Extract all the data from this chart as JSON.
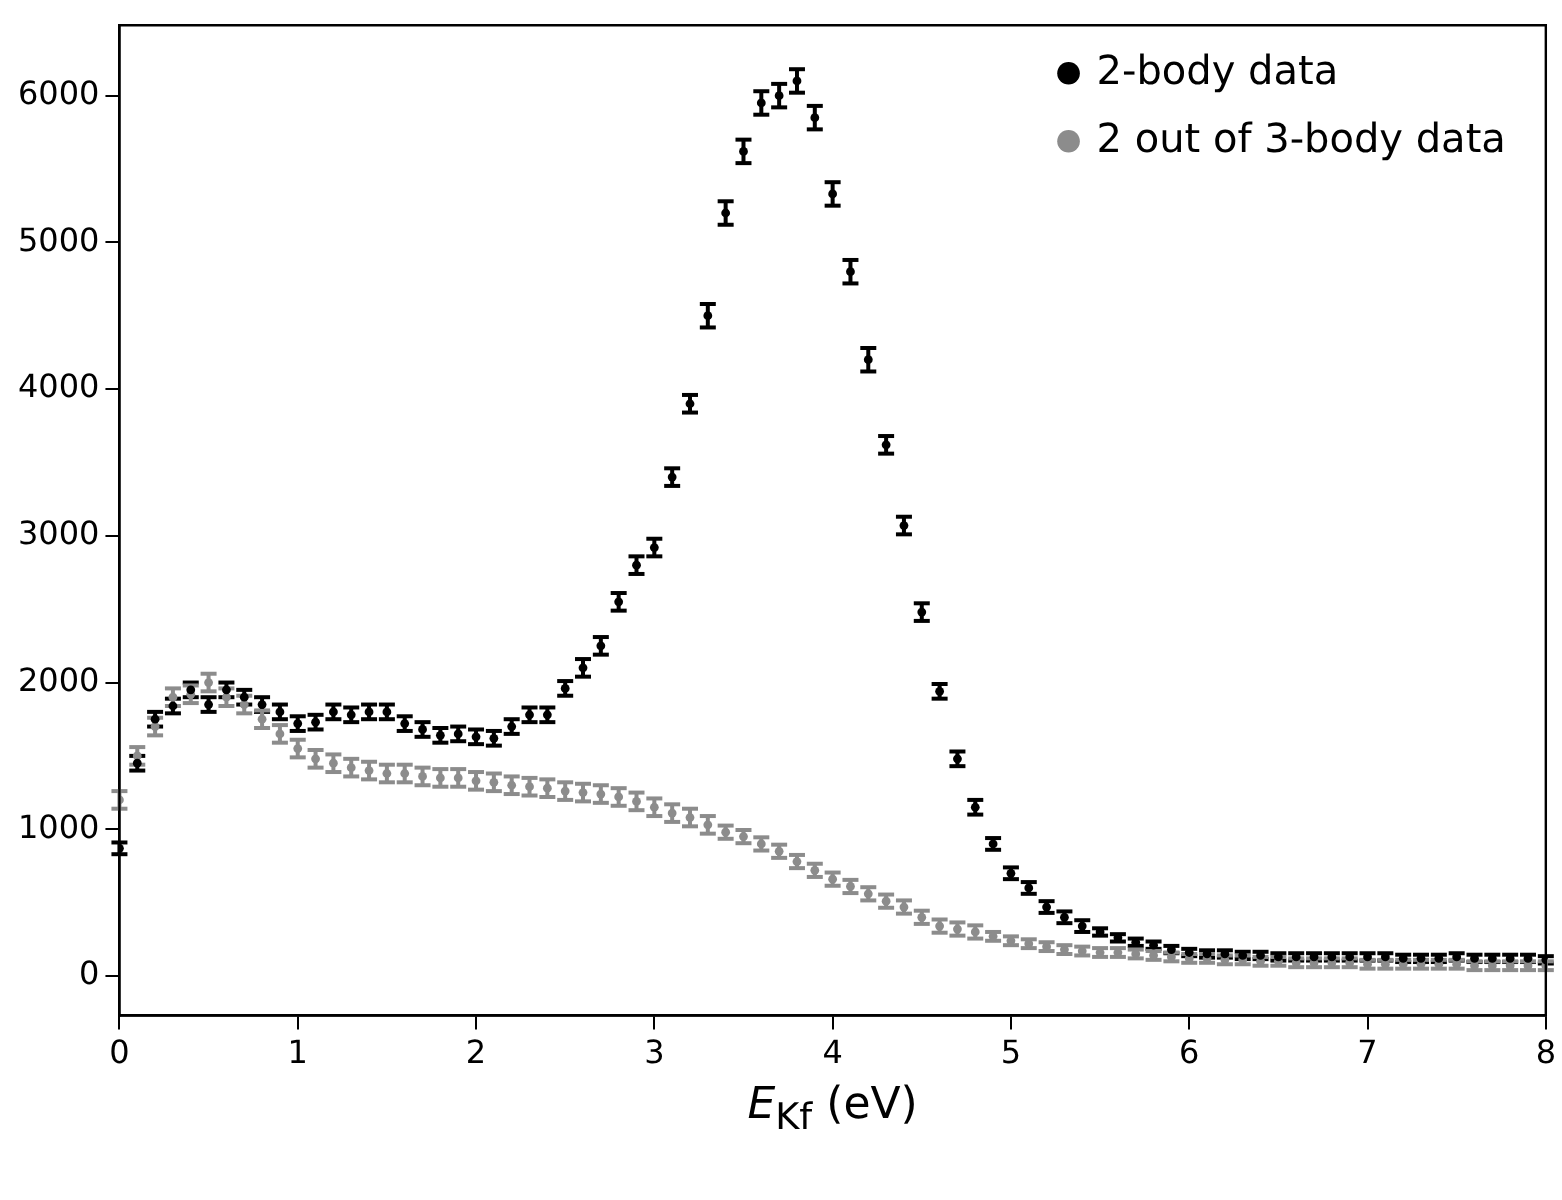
{
  "chart_data": {
    "type": "scatter",
    "xlabel": "E$_{Kf}$ (eV)",
    "x": [
      0,
      0.1,
      0.2,
      0.3,
      0.4,
      0.5,
      0.6,
      0.7,
      0.8,
      0.9,
      1,
      1.1,
      1.2,
      1.3,
      1.4,
      1.5,
      1.6,
      1.7,
      1.8,
      1.9,
      2,
      2.1,
      2.2,
      2.3,
      2.4,
      2.5,
      2.6,
      2.7,
      2.8,
      2.9,
      3,
      3.1,
      3.2,
      3.3,
      3.4,
      3.5,
      3.6,
      3.7,
      3.8,
      3.9,
      4,
      4.1,
      4.2,
      4.3,
      4.4,
      4.5,
      4.6,
      4.7,
      4.8,
      4.9,
      5,
      5.1,
      5.2,
      5.3,
      5.4,
      5.5,
      5.6,
      5.7,
      5.8,
      5.9,
      6,
      6.1,
      6.2,
      6.3,
      6.4,
      6.5,
      6.6,
      6.7,
      6.8,
      6.9,
      7,
      7.1,
      7.2,
      7.3,
      7.4,
      7.5,
      7.6,
      7.7,
      7.8,
      7.9,
      8
    ],
    "series": [
      {
        "name": "2-body data",
        "color": "#000000",
        "values": [
          870,
          1450,
          1750,
          1840,
          1950,
          1850,
          1950,
          1900,
          1850,
          1800,
          1720,
          1730,
          1800,
          1780,
          1800,
          1800,
          1720,
          1680,
          1640,
          1650,
          1630,
          1620,
          1700,
          1780,
          1780,
          1960,
          2100,
          2250,
          2550,
          2800,
          2920,
          3400,
          3900,
          4500,
          5200,
          5620,
          5950,
          6000,
          6100,
          5850,
          5330,
          4800,
          4200,
          3620,
          3070,
          2480,
          1940,
          1480,
          1150,
          900,
          700,
          600,
          470,
          400,
          340,
          300,
          260,
          230,
          210,
          180,
          160,
          150,
          150,
          140,
          140,
          130,
          130,
          130,
          130,
          130,
          130,
          130,
          120,
          120,
          120,
          130,
          120,
          120,
          120,
          120,
          110
        ],
        "errors": [
          40,
          50,
          50,
          50,
          50,
          50,
          50,
          50,
          50,
          50,
          50,
          50,
          50,
          50,
          50,
          50,
          50,
          50,
          50,
          50,
          50,
          50,
          50,
          50,
          50,
          50,
          60,
          60,
          60,
          60,
          60,
          60,
          60,
          80,
          80,
          80,
          80,
          80,
          80,
          80,
          80,
          80,
          80,
          60,
          60,
          60,
          50,
          50,
          50,
          40,
          40,
          40,
          40,
          40,
          40,
          25,
          25,
          25,
          25,
          25,
          25,
          25,
          25,
          25,
          25,
          25,
          25,
          25,
          25,
          25,
          25,
          25,
          25,
          25,
          25,
          25,
          25,
          25,
          25,
          25,
          25
        ]
      },
      {
        "name": "2 out of 3-body data",
        "color": "#8c8c8c",
        "values": [
          1200,
          1500,
          1700,
          1900,
          1920,
          2000,
          1900,
          1850,
          1750,
          1650,
          1550,
          1480,
          1450,
          1420,
          1400,
          1380,
          1380,
          1360,
          1350,
          1350,
          1330,
          1320,
          1300,
          1290,
          1280,
          1260,
          1250,
          1240,
          1220,
          1190,
          1150,
          1110,
          1080,
          1030,
          980,
          950,
          900,
          850,
          780,
          720,
          660,
          610,
          560,
          510,
          470,
          400,
          340,
          320,
          300,
          270,
          240,
          220,
          200,
          180,
          170,
          160,
          160,
          150,
          140,
          130,
          120,
          120,
          110,
          110,
          100,
          100,
          90,
          90,
          90,
          90,
          80,
          80,
          80,
          80,
          80,
          80,
          70,
          70,
          70,
          70,
          70
        ],
        "errors": [
          60,
          60,
          60,
          60,
          60,
          60,
          60,
          60,
          60,
          60,
          60,
          60,
          60,
          60,
          60,
          60,
          60,
          60,
          60,
          60,
          60,
          60,
          60,
          60,
          60,
          60,
          60,
          60,
          60,
          60,
          60,
          60,
          60,
          60,
          45,
          45,
          45,
          45,
          45,
          45,
          45,
          45,
          45,
          45,
          45,
          45,
          45,
          45,
          45,
          30,
          30,
          30,
          30,
          30,
          30,
          30,
          30,
          30,
          30,
          30,
          30,
          30,
          30,
          30,
          30,
          30,
          30,
          30,
          30,
          30,
          30,
          30,
          30,
          30,
          30,
          30,
          30,
          30,
          30,
          30,
          30
        ]
      }
    ],
    "xlim": [
      0,
      8
    ],
    "xticks": [
      0,
      1,
      2,
      3,
      4,
      5,
      6,
      7,
      8
    ],
    "ylim": [
      -270,
      6480
    ],
    "yticks": [
      0,
      1000,
      2000,
      3000,
      4000,
      5000,
      6000
    ],
    "grid": false,
    "legend": "top right",
    "marker": "circle"
  }
}
